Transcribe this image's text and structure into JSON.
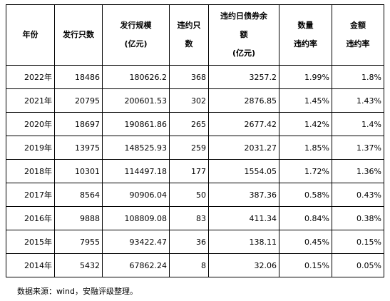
{
  "table": {
    "headers": [
      {
        "lines": [
          "年份"
        ]
      },
      {
        "lines": [
          "发行只数"
        ]
      },
      {
        "lines": [
          "发行规模",
          "(亿元)"
        ]
      },
      {
        "lines": [
          "违约只",
          "数"
        ]
      },
      {
        "lines": [
          "违约日债券余",
          "额",
          "(亿元)"
        ]
      },
      {
        "lines": [
          "数量",
          "违约率"
        ]
      },
      {
        "lines": [
          "金额",
          "违约率"
        ]
      }
    ],
    "rows": [
      [
        "2022年",
        "18486",
        "180626.2",
        "368",
        "3257.2",
        "1.99%",
        "1.8%"
      ],
      [
        "2021年",
        "20795",
        "200601.53",
        "302",
        "2876.85",
        "1.45%",
        "1.43%"
      ],
      [
        "2020年",
        "18697",
        "190861.86",
        "265",
        "2677.42",
        "1.42%",
        "1.4%"
      ],
      [
        "2019年",
        "13975",
        "148525.93",
        "259",
        "2031.27",
        "1.85%",
        "1.37%"
      ],
      [
        "2018年",
        "10301",
        "114497.18",
        "177",
        "1554.05",
        "1.72%",
        "1.36%"
      ],
      [
        "2017年",
        "8564",
        "90906.04",
        "50",
        "387.36",
        "0.58%",
        "0.43%"
      ],
      [
        "2016年",
        "9888",
        "108809.08",
        "83",
        "411.34",
        "0.84%",
        "0.38%"
      ],
      [
        "2015年",
        "7955",
        "93422.47",
        "36",
        "138.11",
        "0.45%",
        "0.15%"
      ],
      [
        "2014年",
        "5432",
        "67862.24",
        "8",
        "32.06",
        "0.15%",
        "0.05%"
      ]
    ]
  },
  "footnote": "数据来源：wind，安融评级整理。"
}
